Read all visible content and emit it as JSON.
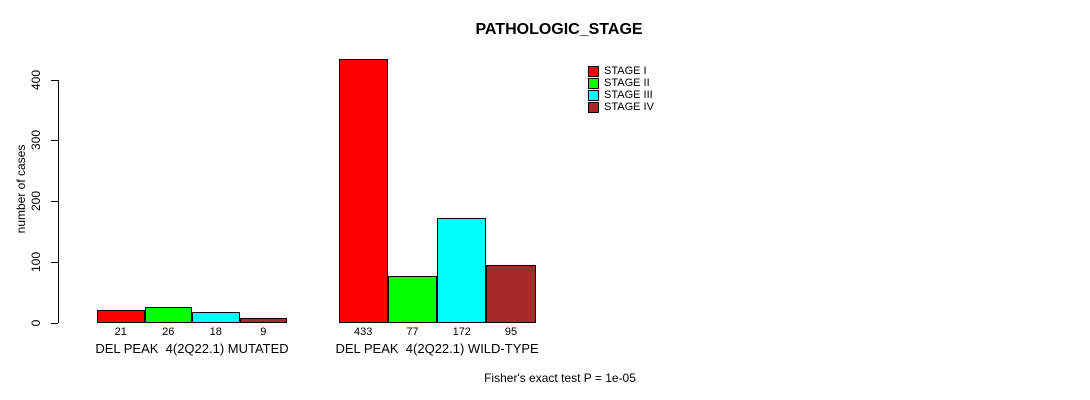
{
  "chart_data": {
    "type": "bar",
    "title": "PATHOLOGIC_STAGE",
    "ylabel": "number of cases",
    "xlabel": "",
    "ylim": [
      0,
      400
    ],
    "yticks": [
      0,
      100,
      200,
      300,
      400
    ],
    "grid": false,
    "legend_position": "top-right",
    "categories": [
      "DEL PEAK  4(2Q22.1) MUTATED",
      "DEL PEAK  4(2Q22.1) WILD-TYPE"
    ],
    "series": [
      {
        "name": "STAGE I",
        "color": "#FF0000",
        "values": [
          21,
          433
        ]
      },
      {
        "name": "STAGE II",
        "color": "#00FF00",
        "values": [
          26,
          77
        ]
      },
      {
        "name": "STAGE III",
        "color": "#00FFFF",
        "values": [
          18,
          172
        ]
      },
      {
        "name": "STAGE IV",
        "color": "#A52A2A",
        "values": [
          9,
          95
        ]
      }
    ],
    "bar_value_labels": [
      [
        21,
        26,
        18,
        9
      ],
      [
        433,
        77,
        172,
        95
      ]
    ],
    "annotation": "Fisher's exact test P = 1e-05"
  },
  "colors": {
    "background": "#FFFFFF",
    "axis": "#000000",
    "text": "#000000"
  }
}
